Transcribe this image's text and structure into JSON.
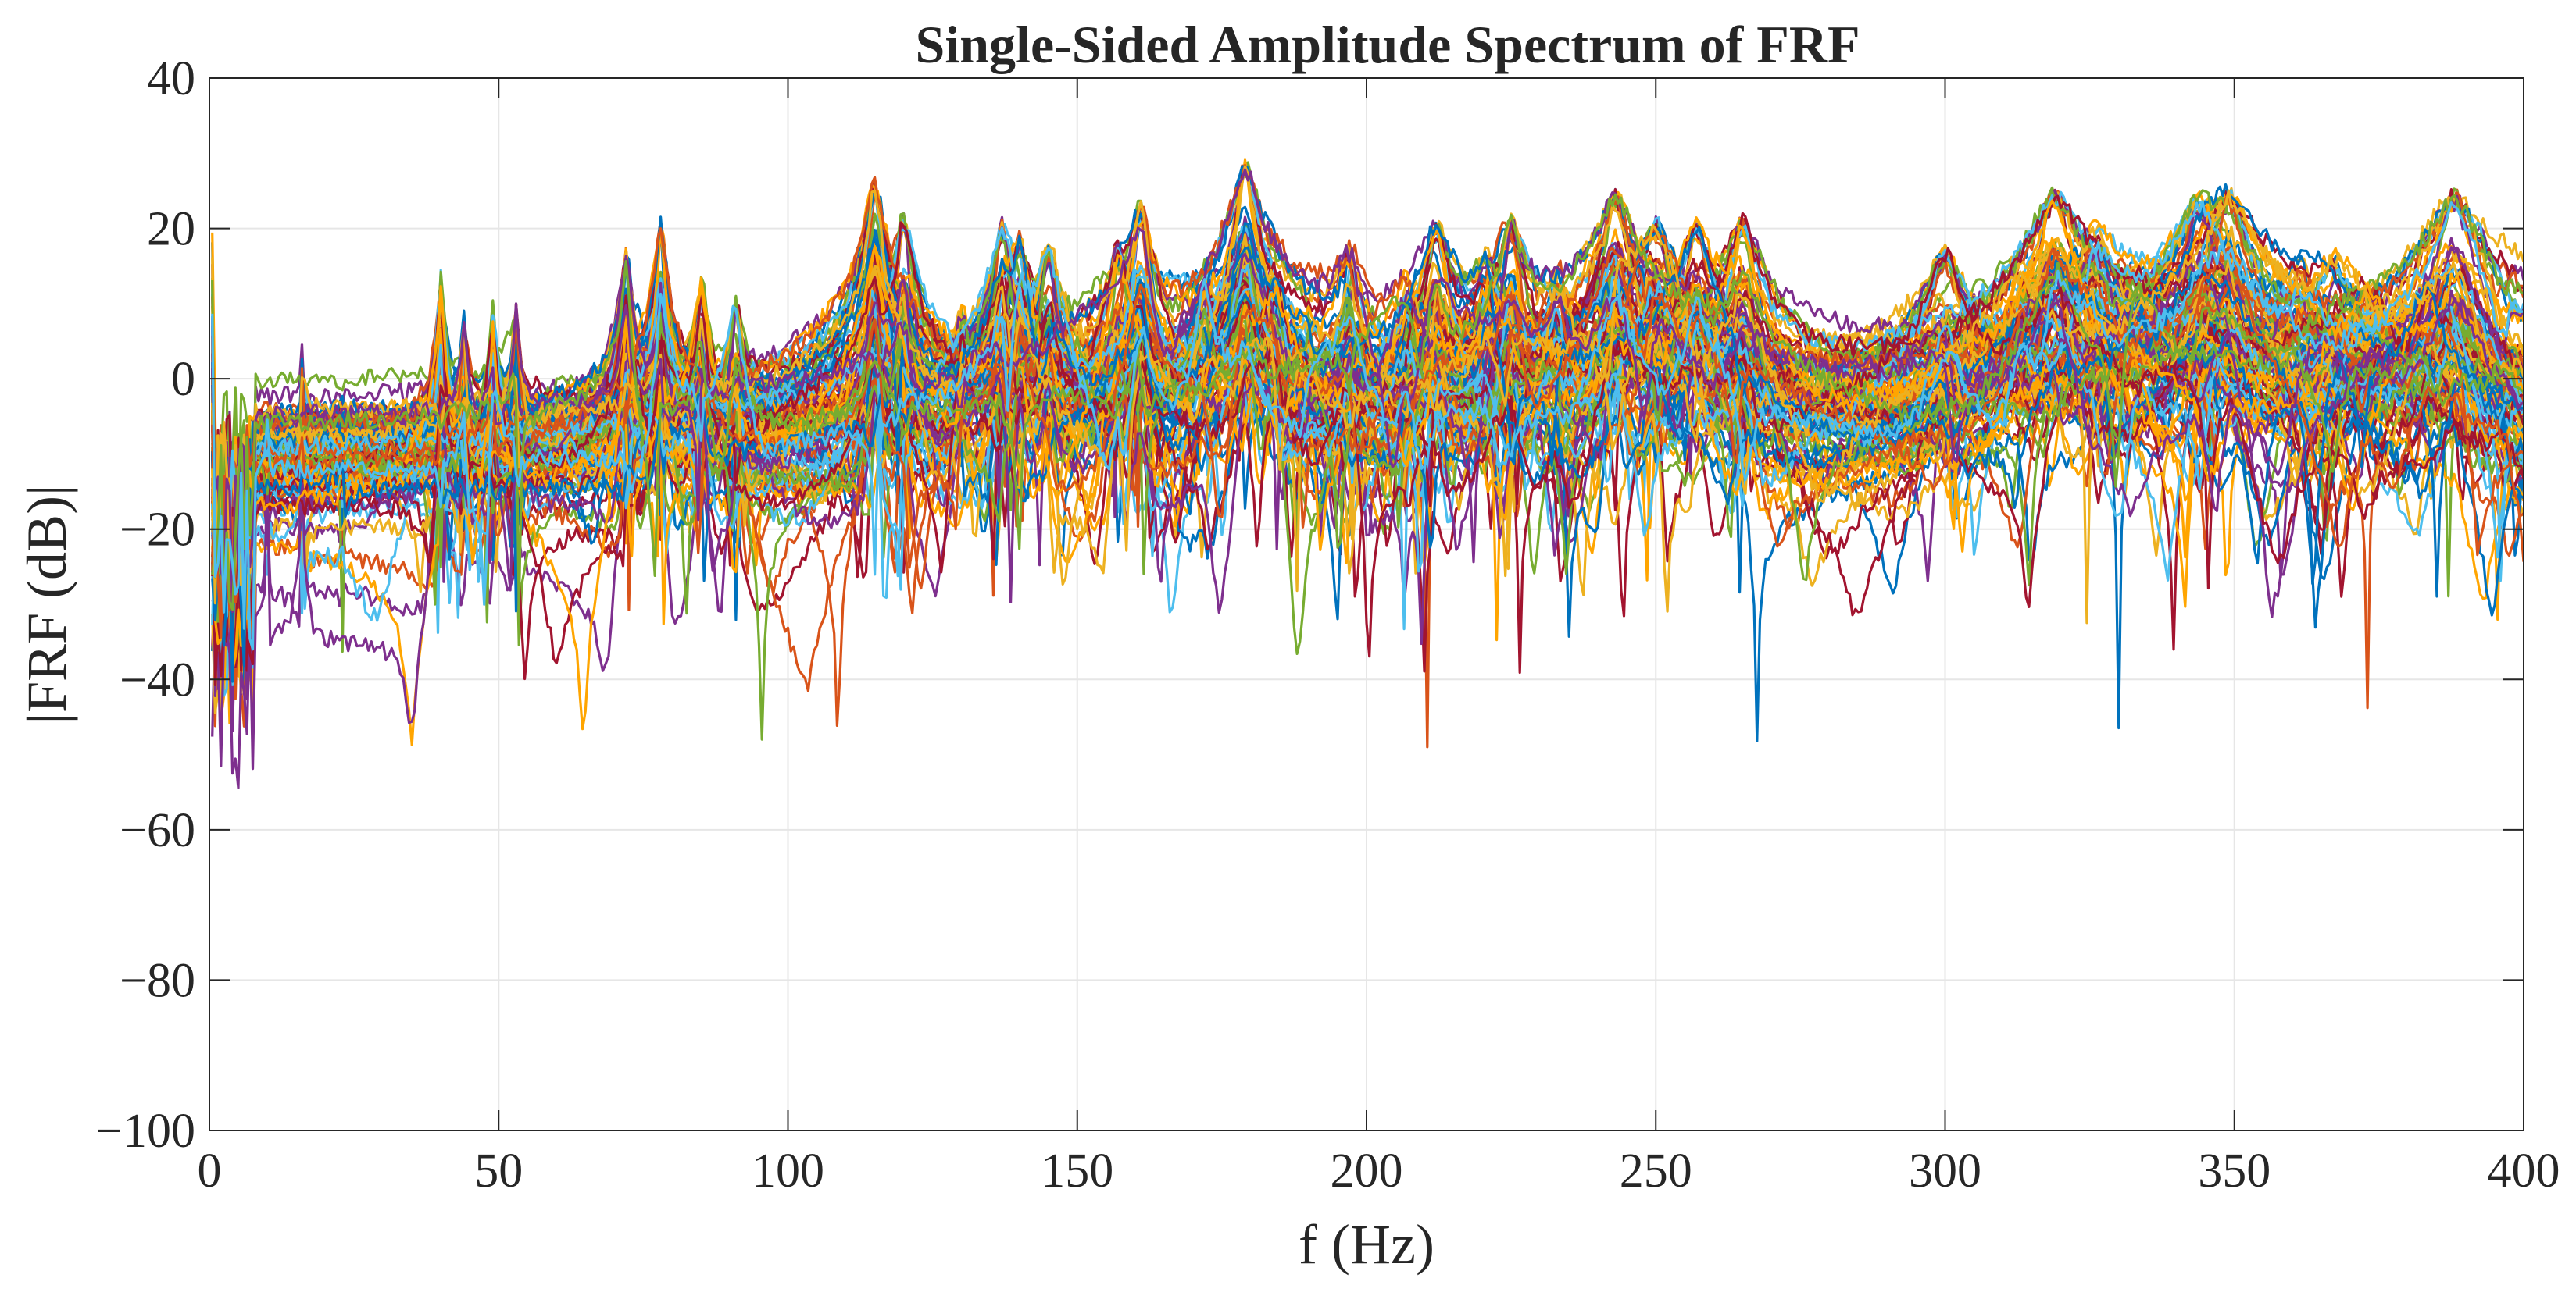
{
  "chart_data": {
    "type": "line",
    "title": "Single-Sided Amplitude Spectrum of FRF",
    "xlabel": "f (Hz)",
    "ylabel": "|FRF (dB)|",
    "xlim": [
      0,
      400
    ],
    "ylim": [
      -100,
      40
    ],
    "x_ticks": [
      {
        "value": 0,
        "label": "0"
      },
      {
        "value": 50,
        "label": "50"
      },
      {
        "value": 100,
        "label": "100"
      },
      {
        "value": 150,
        "label": "150"
      },
      {
        "value": 200,
        "label": "200"
      },
      {
        "value": 250,
        "label": "250"
      },
      {
        "value": 300,
        "label": "300"
      },
      {
        "value": 350,
        "label": "350"
      },
      {
        "value": 400,
        "label": "400"
      }
    ],
    "y_ticks": [
      {
        "value": 40,
        "label": "40"
      },
      {
        "value": 20,
        "label": "20"
      },
      {
        "value": 0,
        "label": "0"
      },
      {
        "value": -20,
        "label": "−20"
      },
      {
        "value": -40,
        "label": "−40"
      },
      {
        "value": -60,
        "label": "−60"
      },
      {
        "value": -80,
        "label": "−80"
      },
      {
        "value": -100,
        "label": "−100"
      }
    ],
    "grid": true,
    "legend": "none",
    "resonance_peaks": [
      {
        "f": 0.5,
        "db": 20
      },
      {
        "f": 10,
        "db": -12
      },
      {
        "f": 16,
        "db": -1
      },
      {
        "f": 23,
        "db": -12
      },
      {
        "f": 40,
        "db": 13
      },
      {
        "f": 44,
        "db": 6
      },
      {
        "f": 49,
        "db": 8
      },
      {
        "f": 53,
        "db": 8
      },
      {
        "f": 72,
        "db": 16
      },
      {
        "f": 78,
        "db": 20
      },
      {
        "f": 85,
        "db": 12
      },
      {
        "f": 91,
        "db": 9
      },
      {
        "f": 115,
        "db": 26
      },
      {
        "f": 120,
        "db": 21
      },
      {
        "f": 130,
        "db": 6
      },
      {
        "f": 137,
        "db": 20
      },
      {
        "f": 140,
        "db": 18
      },
      {
        "f": 145,
        "db": 17
      },
      {
        "f": 157,
        "db": 17
      },
      {
        "f": 161,
        "db": 22
      },
      {
        "f": 172,
        "db": 12
      },
      {
        "f": 179,
        "db": 28
      },
      {
        "f": 184,
        "db": 13
      },
      {
        "f": 190,
        "db": 5
      },
      {
        "f": 197,
        "db": 15
      },
      {
        "f": 207,
        "db": 11
      },
      {
        "f": 212,
        "db": 20
      },
      {
        "f": 221,
        "db": 14
      },
      {
        "f": 225,
        "db": 20
      },
      {
        "f": 233,
        "db": 12
      },
      {
        "f": 243,
        "db": 24
      },
      {
        "f": 250,
        "db": 20
      },
      {
        "f": 257,
        "db": 20
      },
      {
        "f": 265,
        "db": 20
      },
      {
        "f": 300,
        "db": 16
      },
      {
        "f": 313,
        "db": 11
      },
      {
        "f": 319,
        "db": 24
      },
      {
        "f": 326,
        "db": 18
      },
      {
        "f": 333,
        "db": 12
      },
      {
        "f": 344,
        "db": 23
      },
      {
        "f": 349,
        "db": 24
      },
      {
        "f": 361,
        "db": 11
      },
      {
        "f": 367,
        "db": 12
      },
      {
        "f": 373,
        "db": 11
      },
      {
        "f": 383,
        "db": 12
      },
      {
        "f": 388,
        "db": 24
      },
      {
        "f": 397,
        "db": 7
      }
    ],
    "series_colors": [
      "#0072BD",
      "#D95319",
      "#EDB120",
      "#7E2F8E",
      "#77AC30",
      "#4DBEEE",
      "#A2142F",
      "#FFA500"
    ],
    "series_count": 110
  }
}
